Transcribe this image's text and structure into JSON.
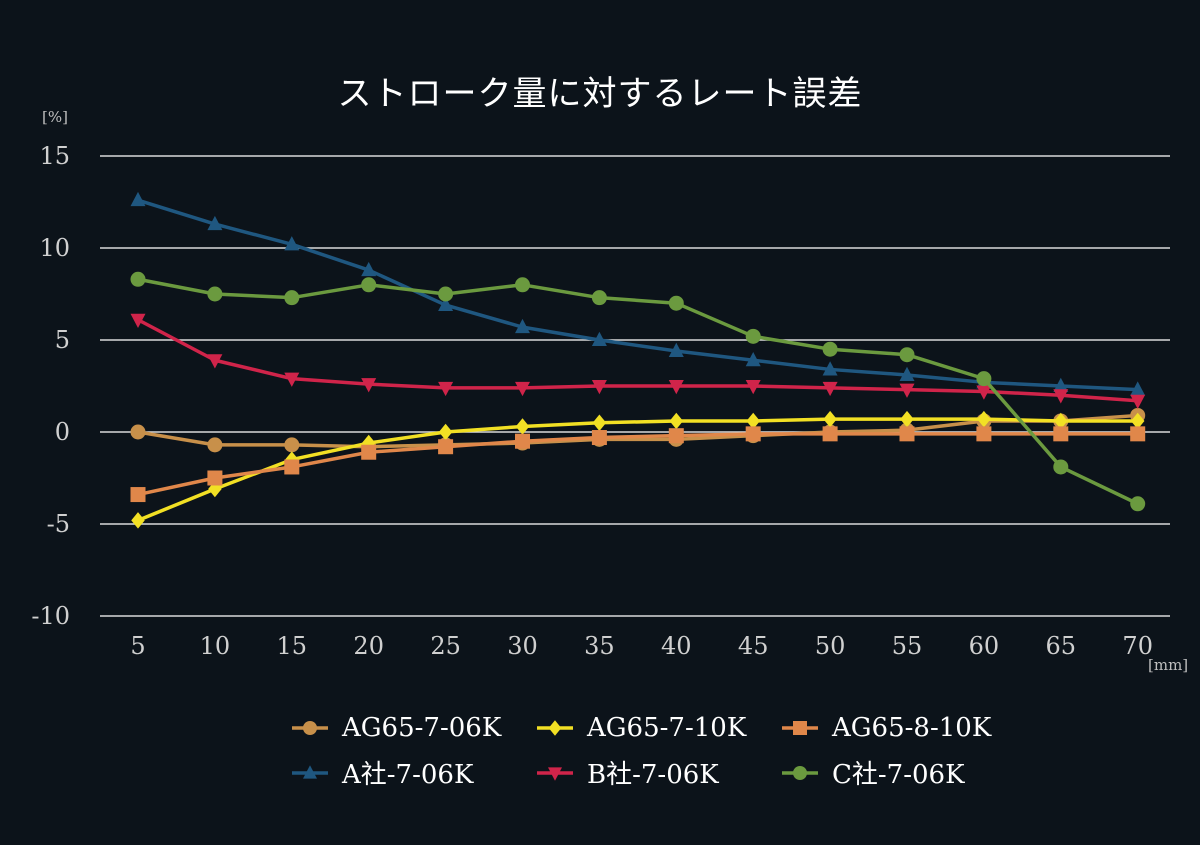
{
  "chart_data": {
    "type": "line",
    "title": "ストローク量に対するレート誤差",
    "ylabel": "[%]",
    "xlabel": "[mm]",
    "x": [
      5,
      10,
      15,
      20,
      25,
      30,
      35,
      40,
      45,
      50,
      55,
      60,
      65,
      70
    ],
    "ylim": [
      -10,
      15
    ],
    "yticks": [
      15,
      10,
      5,
      0,
      -5,
      -10
    ],
    "grid": true,
    "legend_position": "bottom",
    "series": [
      {
        "name": "AG65-7-06K",
        "color": "#c8904a",
        "marker": "circle",
        "values": [
          0.0,
          -0.7,
          -0.7,
          -0.8,
          -0.7,
          -0.6,
          -0.4,
          -0.4,
          -0.2,
          0.0,
          0.1,
          0.6,
          0.6,
          0.9
        ]
      },
      {
        "name": "AG65-7-10K",
        "color": "#f2e024",
        "marker": "diamond",
        "values": [
          -4.8,
          -3.1,
          -1.5,
          -0.6,
          0.0,
          0.3,
          0.5,
          0.6,
          0.6,
          0.7,
          0.7,
          0.7,
          0.6,
          0.6
        ]
      },
      {
        "name": "AG65-8-10K",
        "color": "#e0874a",
        "marker": "square",
        "values": [
          -3.4,
          -2.5,
          -1.9,
          -1.1,
          -0.8,
          -0.5,
          -0.3,
          -0.2,
          -0.1,
          -0.1,
          -0.1,
          -0.1,
          -0.1,
          -0.1
        ]
      },
      {
        "name": "A社-7-06K",
        "color": "#1f5780",
        "marker": "triangle-up",
        "values": [
          12.6,
          11.3,
          10.2,
          8.8,
          6.9,
          5.7,
          5.0,
          4.4,
          3.9,
          3.4,
          3.1,
          2.7,
          2.5,
          2.3
        ]
      },
      {
        "name": "B社-7-06K",
        "color": "#d0244a",
        "marker": "triangle-down",
        "values": [
          6.1,
          3.9,
          2.9,
          2.6,
          2.4,
          2.4,
          2.5,
          2.5,
          2.5,
          2.4,
          2.3,
          2.2,
          2.0,
          1.7
        ]
      },
      {
        "name": "C社-7-06K",
        "color": "#6b9a3f",
        "marker": "circle",
        "values": [
          8.3,
          7.5,
          7.3,
          8.0,
          7.5,
          8.0,
          7.3,
          7.0,
          5.2,
          4.5,
          4.2,
          2.9,
          -1.9,
          -3.9
        ]
      }
    ]
  }
}
